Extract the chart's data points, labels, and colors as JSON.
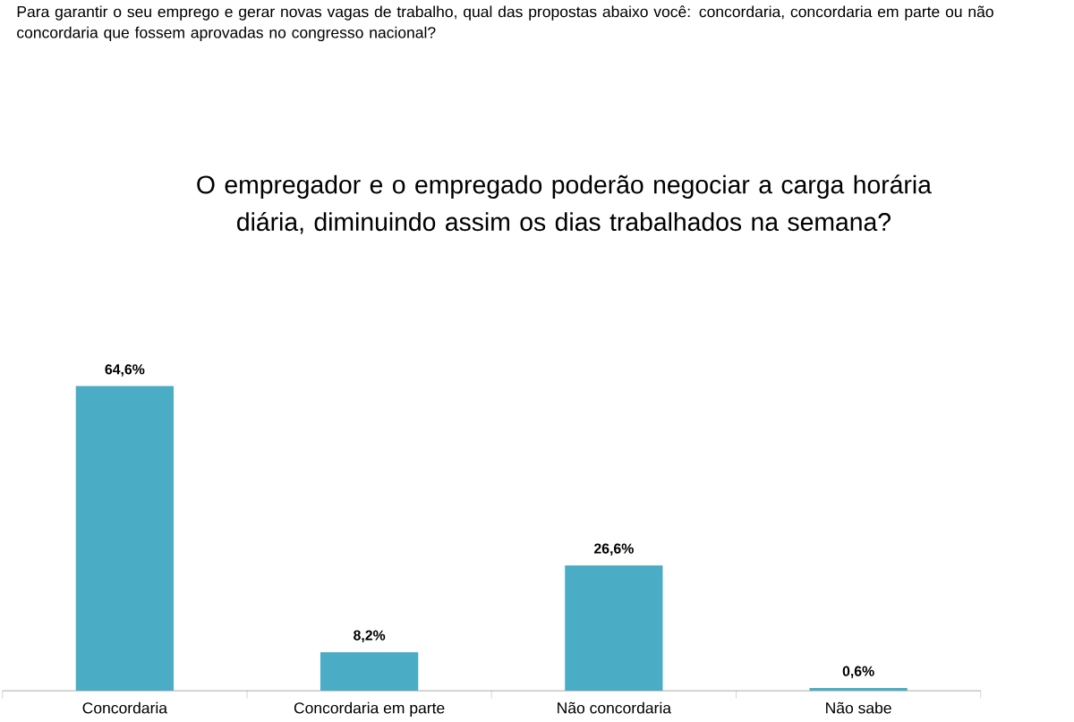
{
  "chart_data": {
    "type": "bar",
    "subtitle": "Para garantir o seu emprego e gerar novas vagas de trabalho, qual das propostas abaixo você: concordaria, concordaria em parte ou não concordaria que fossem aprovadas no congresso nacional?",
    "title": "O empregador e o empregado poderão negociar a carga horária diária, diminuindo assim os dias trabalhados na semana?",
    "categories": [
      "Concordaria",
      "Concordaria em parte",
      "Não concordaria",
      "Não sabe"
    ],
    "values": [
      64.6,
      8.2,
      26.6,
      0.6
    ],
    "value_labels": [
      "64,6%",
      "8,2%",
      "26,6%",
      "0,6%"
    ],
    "color": "#4bacc6"
  }
}
